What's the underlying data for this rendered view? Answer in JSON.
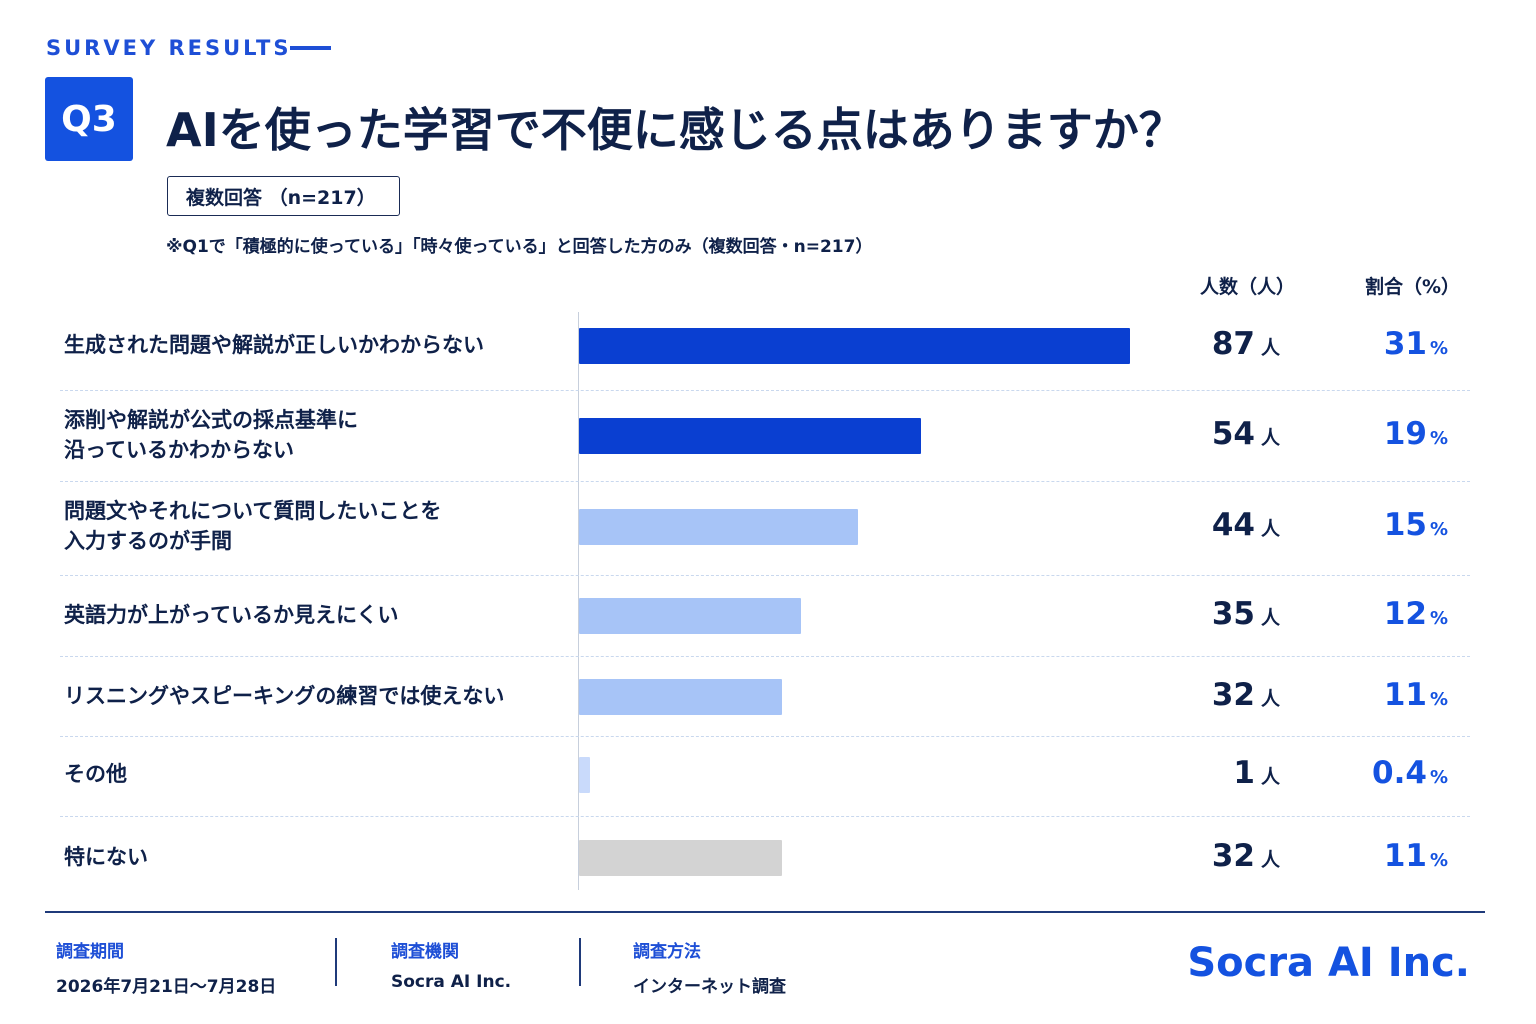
{
  "header": {
    "survey_label": "SURVEY RESULTS",
    "question_no": "Q3",
    "title": "AIを使った学習で不便に感じる点はありますか？",
    "answer_type": "複数回答 （n=217）",
    "note": "※Q1で「積極的に使っている」「時々使っている」と回答した方のみ（複数回答・n=217）"
  },
  "columns": {
    "count_header": "人数（人）",
    "pct_header": "割合（%）"
  },
  "units": {
    "count": "人",
    "pct": "%"
  },
  "colors": {
    "dark_blue": "#0a3fd1",
    "light_blue": "#a7c4f7",
    "pale_blue": "#c9dafb",
    "gray": "#d3d3d3",
    "accent": "#1452e0"
  },
  "chart_data": {
    "type": "bar",
    "orientation": "horizontal",
    "categories": [
      "生成された問題や解説が正しいかわからない",
      "添削や解説が公式の採点基準に\n沿っているかわからない",
      "問題文やそれについて質問したいことを\n入力するのが手間",
      "英語力が上がっているか見えにくい",
      "リスニングやスピーキングの練習では使えない",
      "その他",
      "特にない"
    ],
    "values": [
      87,
      54,
      44,
      35,
      32,
      1,
      32
    ],
    "percent_labels": [
      "31",
      "19",
      "15",
      "12",
      "11",
      "0.4",
      "11"
    ],
    "bar_colors": [
      "#0a3fd1",
      "#0a3fd1",
      "#a7c4f7",
      "#a7c4f7",
      "#a7c4f7",
      "#c9dafb",
      "#d3d3d3"
    ],
    "xlim": [
      0,
      87
    ]
  },
  "footer": {
    "period_label": "調査期間",
    "period_value": "2026年7月21日〜7月28日",
    "org_label": "調査機関",
    "org_value": "Socra AI Inc.",
    "method_label": "調査方法",
    "method_value": "インターネット調査",
    "brand": "Socra AI Inc."
  }
}
